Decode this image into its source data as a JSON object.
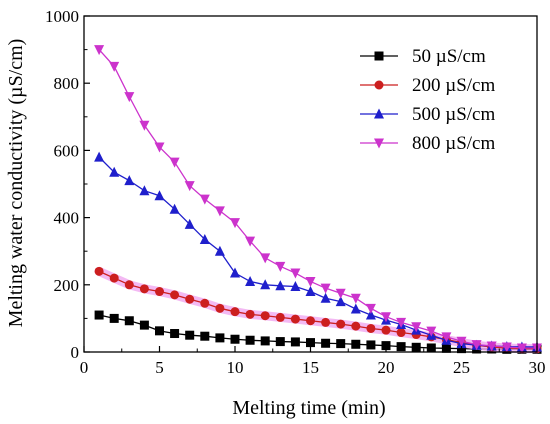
{
  "chart_data": {
    "type": "line",
    "xlabel": "Melting time (min)",
    "ylabel": "Melting water conductivity (µS/cm)",
    "xlim": [
      0,
      30
    ],
    "ylim": [
      0,
      1000
    ],
    "xticks": [
      "0",
      "5",
      "10",
      "15",
      "20",
      "25",
      "30"
    ],
    "yticks": [
      "0",
      "200",
      "400",
      "600",
      "800",
      "1000"
    ],
    "grid": false,
    "legend_position": "top-right",
    "x": [
      1,
      2,
      3,
      4,
      5,
      6,
      7,
      8,
      9,
      10,
      11,
      12,
      13,
      14,
      15,
      16,
      17,
      18,
      19,
      20,
      21,
      22,
      23,
      24,
      25,
      26,
      27,
      28,
      29,
      30
    ],
    "series": [
      {
        "name": "50 µS/cm",
        "color": "#000000",
        "marker": "square",
        "values": [
          110,
          100,
          93,
          80,
          63,
          55,
          50,
          47,
          42,
          38,
          35,
          33,
          31,
          30,
          28,
          26,
          25,
          23,
          21,
          19,
          16,
          14,
          12,
          11,
          10,
          9,
          9,
          8,
          8,
          8
        ]
      },
      {
        "name": "200 µS/cm",
        "color": "#cc1f1f",
        "halo": "#f0a8f0",
        "marker": "circle",
        "values": [
          240,
          220,
          200,
          188,
          180,
          170,
          157,
          145,
          130,
          120,
          112,
          108,
          103,
          98,
          93,
          88,
          83,
          77,
          70,
          65,
          58,
          52,
          45,
          37,
          28,
          20,
          15,
          12,
          10,
          10
        ]
      },
      {
        "name": "500 µS/cm",
        "color": "#1f1fcc",
        "marker": "triangle-up",
        "values": [
          580,
          535,
          510,
          480,
          465,
          425,
          380,
          335,
          300,
          235,
          210,
          200,
          197,
          195,
          180,
          160,
          150,
          128,
          110,
          95,
          82,
          65,
          50,
          35,
          25,
          20,
          18,
          16,
          15,
          15
        ]
      },
      {
        "name": "800 µS/cm",
        "color": "#cc33cc",
        "marker": "triangle-down",
        "values": [
          900,
          850,
          760,
          675,
          610,
          565,
          495,
          455,
          420,
          385,
          330,
          280,
          255,
          235,
          210,
          190,
          175,
          160,
          130,
          105,
          88,
          75,
          62,
          45,
          32,
          22,
          18,
          15,
          12,
          12
        ]
      }
    ]
  }
}
